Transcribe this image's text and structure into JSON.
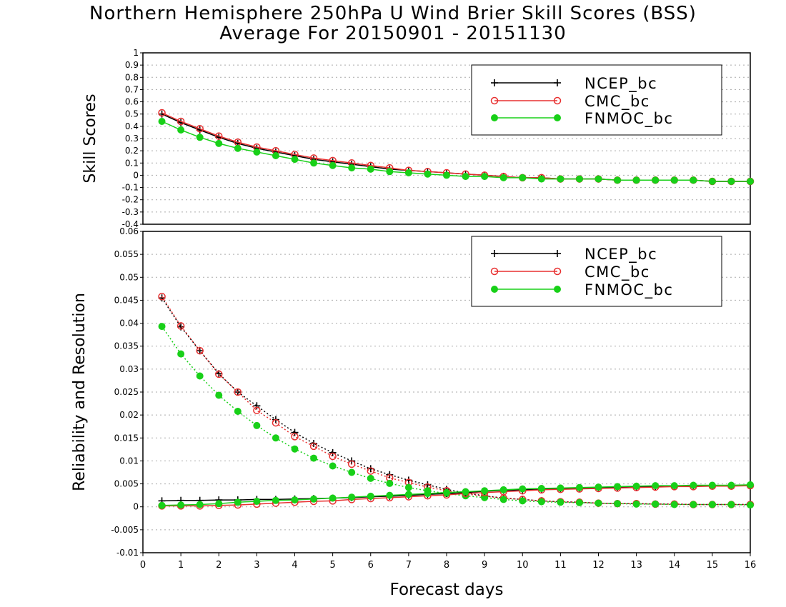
{
  "title": "Northern Hemisphere 250hPa U Wind Brier Skill Scores (BSS)",
  "subtitle": "Average For 20150901 - 20151130",
  "colors": {
    "NCEP_bc": "#000000",
    "CMC_bc": "#e83030",
    "FNMOC_bc": "#18d018",
    "grid": "#aaaaaa"
  },
  "chart_data": [
    {
      "type": "line",
      "ylabel": "Skill Scores",
      "ylim": [
        -0.4,
        1
      ],
      "yticks": [
        "-0.4",
        "-0.3",
        "-0.2",
        "-0.1",
        "0",
        "0.1",
        "0.2",
        "0.3",
        "0.4",
        "0.5",
        "0.6",
        "0.7",
        "0.8",
        "0.9",
        "1"
      ],
      "xlim": [
        0,
        16
      ],
      "grid": "dotted",
      "legend": "top-right",
      "x": [
        0.5,
        1,
        1.5,
        2,
        2.5,
        3,
        3.5,
        4,
        4.5,
        5,
        5.5,
        6,
        6.5,
        7,
        7.5,
        8,
        8.5,
        9,
        9.5,
        10,
        10.5,
        11,
        11.5,
        12,
        12.5,
        13,
        13.5,
        14,
        14.5,
        15,
        15.5,
        16
      ],
      "series": [
        {
          "name": "NCEP_bc",
          "marker": "plus",
          "values": [
            0.5,
            0.43,
            0.37,
            0.31,
            0.26,
            0.22,
            0.19,
            0.16,
            0.13,
            0.11,
            0.09,
            0.07,
            0.05,
            0.04,
            0.03,
            0.02,
            0.01,
            0.0,
            -0.01,
            -0.02,
            -0.02,
            -0.03,
            -0.03,
            -0.03,
            -0.04,
            -0.04,
            -0.04,
            -0.04,
            -0.04,
            -0.05,
            -0.05,
            -0.05
          ]
        },
        {
          "name": "CMC_bc",
          "marker": "open-circle",
          "values": [
            0.51,
            0.44,
            0.38,
            0.32,
            0.27,
            0.23,
            0.2,
            0.17,
            0.14,
            0.12,
            0.1,
            0.08,
            0.06,
            0.04,
            0.03,
            0.02,
            0.01,
            0.0,
            -0.01,
            -0.02,
            -0.02,
            -0.03,
            -0.03,
            -0.03,
            -0.04,
            -0.04,
            -0.04,
            -0.04,
            -0.04,
            -0.05,
            -0.05,
            -0.05
          ]
        },
        {
          "name": "FNMOC_bc",
          "marker": "filled-circle",
          "values": [
            0.44,
            0.37,
            0.31,
            0.26,
            0.22,
            0.19,
            0.16,
            0.13,
            0.1,
            0.08,
            0.06,
            0.05,
            0.03,
            0.02,
            0.01,
            0.0,
            -0.01,
            -0.01,
            -0.02,
            -0.02,
            -0.03,
            -0.03,
            -0.03,
            -0.03,
            -0.04,
            -0.04,
            -0.04,
            -0.04,
            -0.04,
            -0.05,
            -0.05,
            -0.05
          ]
        }
      ]
    },
    {
      "type": "line",
      "ylabel": "Reliability and Resolution",
      "xlabel": "Forecast days",
      "ylim": [
        -0.01,
        0.06
      ],
      "yticks": [
        "-0.01",
        "-0.005",
        "0",
        "0.005",
        "0.01",
        "0.015",
        "0.02",
        "0.025",
        "0.03",
        "0.035",
        "0.04",
        "0.045",
        "0.05",
        "0.055",
        "0.06"
      ],
      "xticks": [
        "0",
        "1",
        "2",
        "3",
        "4",
        "5",
        "6",
        "7",
        "8",
        "9",
        "10",
        "11",
        "12",
        "13",
        "14",
        "15",
        "16"
      ],
      "xlim": [
        0,
        16
      ],
      "grid": "dotted",
      "legend": "top-right",
      "x": [
        0.5,
        1,
        1.5,
        2,
        2.5,
        3,
        3.5,
        4,
        4.5,
        5,
        5.5,
        6,
        6.5,
        7,
        7.5,
        8,
        8.5,
        9,
        9.5,
        10,
        10.5,
        11,
        11.5,
        12,
        12.5,
        13,
        13.5,
        14,
        14.5,
        15,
        15.5,
        16
      ],
      "series": [
        {
          "name": "NCEP_bc",
          "marker": "plus",
          "line": "solid",
          "kind": "reliability",
          "values": [
            0.0013,
            0.0014,
            0.0014,
            0.0015,
            0.0015,
            0.0016,
            0.0016,
            0.0017,
            0.0018,
            0.0019,
            0.002,
            0.0022,
            0.0023,
            0.0025,
            0.0027,
            0.0029,
            0.0031,
            0.0034,
            0.0036,
            0.0037,
            0.0039,
            0.004,
            0.0041,
            0.0042,
            0.0043,
            0.0044,
            0.0044,
            0.0045,
            0.0046,
            0.0046,
            0.0046,
            0.0047
          ]
        },
        {
          "name": "CMC_bc",
          "marker": "open-circle",
          "line": "solid",
          "kind": "reliability",
          "values": [
            0.0002,
            0.0002,
            0.0002,
            0.0003,
            0.0004,
            0.0006,
            0.0008,
            0.001,
            0.0012,
            0.0013,
            0.0016,
            0.0018,
            0.002,
            0.0022,
            0.0024,
            0.0026,
            0.0029,
            0.0031,
            0.0033,
            0.0035,
            0.0037,
            0.0038,
            0.0039,
            0.004,
            0.0041,
            0.0042,
            0.0043,
            0.0044,
            0.0044,
            0.0045,
            0.0045,
            0.0046
          ]
        },
        {
          "name": "FNMOC_bc",
          "marker": "filled-circle",
          "line": "solid",
          "kind": "reliability",
          "values": [
            0.0003,
            0.0004,
            0.0005,
            0.0007,
            0.001,
            0.0012,
            0.0014,
            0.0015,
            0.0017,
            0.0019,
            0.0021,
            0.0023,
            0.0025,
            0.0027,
            0.0029,
            0.0031,
            0.0033,
            0.0035,
            0.0037,
            0.0039,
            0.004,
            0.0041,
            0.0042,
            0.0043,
            0.0044,
            0.0045,
            0.0046,
            0.0046,
            0.0047,
            0.0047,
            0.0047,
            0.0048
          ]
        },
        {
          "name": "NCEP_bc",
          "marker": "plus",
          "line": "dotted",
          "kind": "resolution",
          "values": [
            0.0455,
            0.0392,
            0.034,
            0.029,
            0.025,
            0.022,
            0.019,
            0.0162,
            0.0138,
            0.0118,
            0.01,
            0.0083,
            0.007,
            0.0058,
            0.0048,
            0.0038,
            0.003,
            0.0024,
            0.0019,
            0.0016,
            0.0013,
            0.0011,
            0.001,
            0.0008,
            0.0007,
            0.0007,
            0.0006,
            0.0006,
            0.0005,
            0.0005,
            0.0005,
            0.0005
          ]
        },
        {
          "name": "CMC_bc",
          "marker": "open-circle",
          "line": "dotted",
          "kind": "resolution",
          "values": [
            0.0458,
            0.0394,
            0.034,
            0.0289,
            0.025,
            0.021,
            0.0183,
            0.0153,
            0.0132,
            0.011,
            0.0093,
            0.0078,
            0.0063,
            0.0053,
            0.0043,
            0.0035,
            0.0028,
            0.0023,
            0.0019,
            0.0016,
            0.0013,
            0.0011,
            0.001,
            0.0008,
            0.0007,
            0.0007,
            0.0006,
            0.0006,
            0.0005,
            0.0005,
            0.0005,
            0.0005
          ]
        },
        {
          "name": "FNMOC_bc",
          "marker": "filled-circle",
          "line": "dotted",
          "kind": "resolution",
          "values": [
            0.0393,
            0.0333,
            0.0285,
            0.0243,
            0.0208,
            0.0177,
            0.015,
            0.0126,
            0.0106,
            0.0089,
            0.0075,
            0.0062,
            0.0051,
            0.0042,
            0.0035,
            0.0029,
            0.0024,
            0.002,
            0.0016,
            0.0013,
            0.0011,
            0.001,
            0.0009,
            0.0008,
            0.0007,
            0.0006,
            0.0006,
            0.0005,
            0.0005,
            0.0005,
            0.0005,
            0.0004
          ]
        }
      ]
    }
  ]
}
